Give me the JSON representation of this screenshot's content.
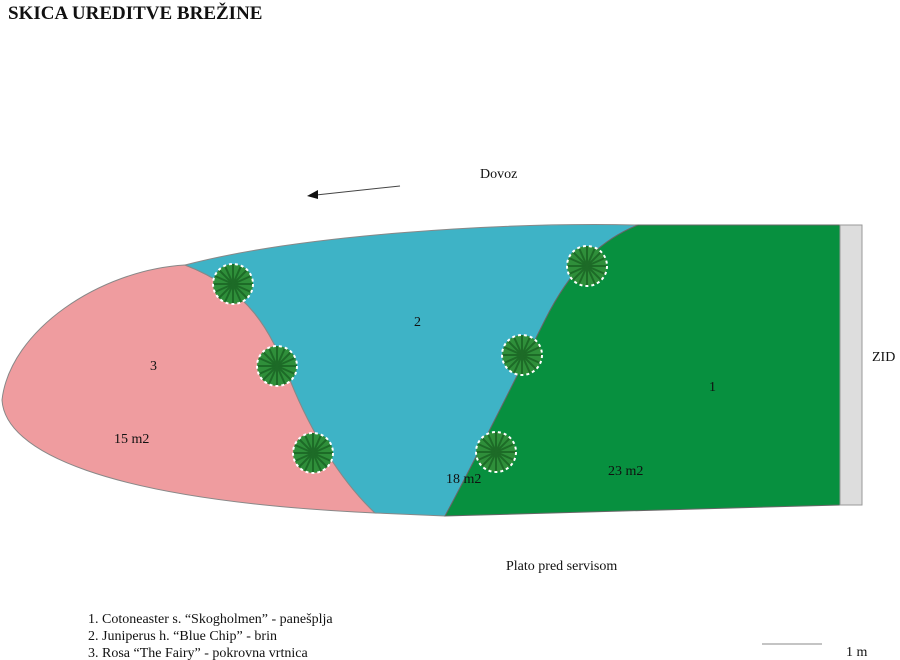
{
  "title": "SKICA UREDITVE BREŽINE",
  "labels": {
    "access": "Dovoz",
    "wall": "ZID",
    "plateau": "Plato pred servisom"
  },
  "zones": [
    {
      "number": "1",
      "area": "23 m2"
    },
    {
      "number": "2",
      "area": "18 m2"
    },
    {
      "number": "3",
      "area": "15 m2"
    }
  ],
  "legend": [
    "1. Cotoneaster s. “Skogholmen” - panešplja",
    "2. Juniperus h. “Blue Chip” - brin",
    "3. Rosa “The Fairy” - pokrovna vrtnica"
  ],
  "scale": "1 m"
}
